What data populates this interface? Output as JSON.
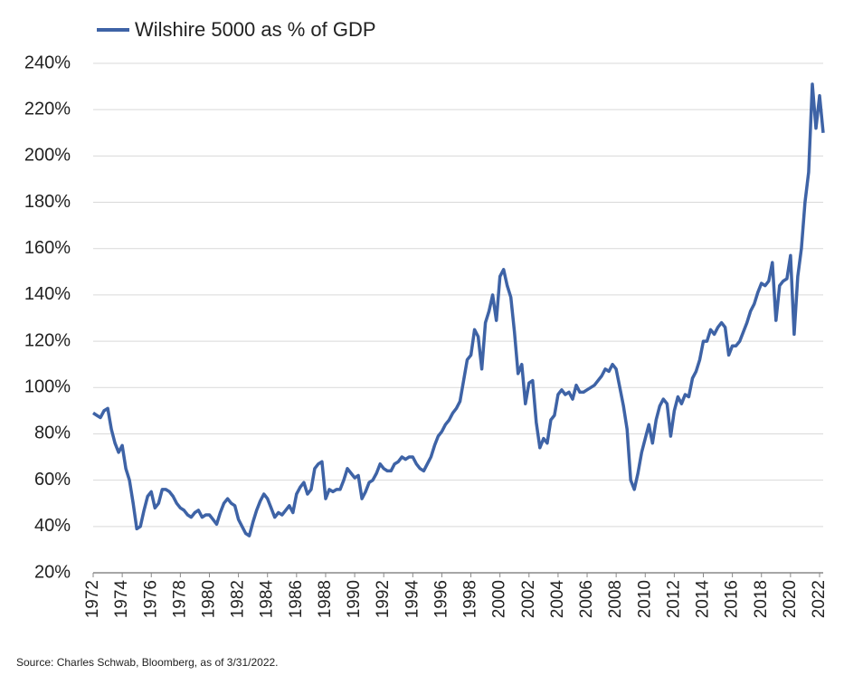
{
  "chart_data": {
    "type": "line",
    "legend": "top-left",
    "source": "Source: Charles Schwab, Bloomberg, as of 3/31/2022.",
    "x": [
      1972.0,
      1972.25,
      1972.5,
      1972.75,
      1973.0,
      1973.25,
      1973.5,
      1973.75,
      1974.0,
      1974.25,
      1974.5,
      1974.75,
      1975.0,
      1975.25,
      1975.5,
      1975.75,
      1976.0,
      1976.25,
      1976.5,
      1976.75,
      1977.0,
      1977.25,
      1977.5,
      1977.75,
      1978.0,
      1978.25,
      1978.5,
      1978.75,
      1979.0,
      1979.25,
      1979.5,
      1979.75,
      1980.0,
      1980.25,
      1980.5,
      1980.75,
      1981.0,
      1981.25,
      1981.5,
      1981.75,
      1982.0,
      1982.25,
      1982.5,
      1982.75,
      1983.0,
      1983.25,
      1983.5,
      1983.75,
      1984.0,
      1984.25,
      1984.5,
      1984.75,
      1985.0,
      1985.25,
      1985.5,
      1985.75,
      1986.0,
      1986.25,
      1986.5,
      1986.75,
      1987.0,
      1987.25,
      1987.5,
      1987.75,
      1988.0,
      1988.25,
      1988.5,
      1988.75,
      1989.0,
      1989.25,
      1989.5,
      1989.75,
      1990.0,
      1990.25,
      1990.5,
      1990.75,
      1991.0,
      1991.25,
      1991.5,
      1991.75,
      1992.0,
      1992.25,
      1992.5,
      1992.75,
      1993.0,
      1993.25,
      1993.5,
      1993.75,
      1994.0,
      1994.25,
      1994.5,
      1994.75,
      1995.0,
      1995.25,
      1995.5,
      1995.75,
      1996.0,
      1996.25,
      1996.5,
      1996.75,
      1997.0,
      1997.25,
      1997.5,
      1997.75,
      1998.0,
      1998.25,
      1998.5,
      1998.75,
      1999.0,
      1999.25,
      1999.5,
      1999.75,
      2000.0,
      2000.25,
      2000.5,
      2000.75,
      2001.0,
      2001.25,
      2001.5,
      2001.75,
      2002.0,
      2002.25,
      2002.5,
      2002.75,
      2003.0,
      2003.25,
      2003.5,
      2003.75,
      2004.0,
      2004.25,
      2004.5,
      2004.75,
      2005.0,
      2005.25,
      2005.5,
      2005.75,
      2006.0,
      2006.25,
      2006.5,
      2006.75,
      2007.0,
      2007.25,
      2007.5,
      2007.75,
      2008.0,
      2008.25,
      2008.5,
      2008.75,
      2009.0,
      2009.25,
      2009.5,
      2009.75,
      2010.0,
      2010.25,
      2010.5,
      2010.75,
      2011.0,
      2011.25,
      2011.5,
      2011.75,
      2012.0,
      2012.25,
      2012.5,
      2012.75,
      2013.0,
      2013.25,
      2013.5,
      2013.75,
      2014.0,
      2014.25,
      2014.5,
      2014.75,
      2015.0,
      2015.25,
      2015.5,
      2015.75,
      2016.0,
      2016.25,
      2016.5,
      2016.75,
      2017.0,
      2017.25,
      2017.5,
      2017.75,
      2018.0,
      2018.25,
      2018.5,
      2018.75,
      2019.0,
      2019.25,
      2019.5,
      2019.75,
      2020.0,
      2020.25,
      2020.5,
      2020.75,
      2021.0,
      2021.25,
      2021.5,
      2021.75,
      2022.0,
      2022.25
    ],
    "series": [
      {
        "name": "Wilshire 5000 as % of GDP",
        "color": "#3e63a6",
        "values": [
          89,
          88,
          87,
          90,
          91,
          82,
          76,
          72,
          75,
          65,
          60,
          50,
          39,
          40,
          47,
          53,
          55,
          48,
          50,
          56,
          56,
          55,
          53,
          50,
          48,
          47,
          45,
          44,
          46,
          47,
          44,
          45,
          45,
          43,
          41,
          46,
          50,
          52,
          50,
          49,
          43,
          40,
          37,
          36,
          42,
          47,
          51,
          54,
          52,
          48,
          44,
          46,
          45,
          47,
          49,
          46,
          54,
          57,
          59,
          54,
          56,
          65,
          67,
          68,
          52,
          56,
          55,
          56,
          56,
          60,
          65,
          63,
          61,
          62,
          52,
          55,
          59,
          60,
          63,
          67,
          65,
          64,
          64,
          67,
          68,
          70,
          69,
          70,
          70,
          67,
          65,
          64,
          67,
          70,
          75,
          79,
          81,
          84,
          86,
          89,
          91,
          94,
          103,
          112,
          114,
          125,
          122,
          108,
          128,
          133,
          140,
          129,
          148,
          151,
          144,
          139,
          124,
          106,
          110,
          93,
          102,
          103,
          85,
          74,
          78,
          76,
          86,
          88,
          97,
          99,
          97,
          98,
          95,
          101,
          98,
          98,
          99,
          100,
          101,
          103,
          105,
          108,
          107,
          110,
          108,
          100,
          92,
          82,
          60,
          56,
          63,
          72,
          78,
          84,
          76,
          86,
          92,
          95,
          93,
          79,
          90,
          96,
          93,
          97,
          96,
          104,
          107,
          112,
          120,
          120,
          125,
          123,
          126,
          128,
          126,
          114,
          118,
          118,
          120,
          124,
          128,
          133,
          136,
          141,
          145,
          144,
          146,
          154,
          129,
          144,
          146,
          147,
          157,
          123,
          148,
          160,
          180,
          193,
          231,
          212,
          226,
          210
        ]
      }
    ],
    "xlim": [
      1972,
      2022.25
    ],
    "xticks": [
      1972,
      1974,
      1976,
      1978,
      1980,
      1982,
      1984,
      1986,
      1988,
      1990,
      1992,
      1994,
      1996,
      1998,
      2000,
      2002,
      2004,
      2006,
      2008,
      2010,
      2012,
      2014,
      2016,
      2018,
      2020,
      2022
    ],
    "ylim": [
      20,
      240
    ],
    "yticks": [
      {
        "value": 20,
        "label": "20%"
      },
      {
        "value": 40,
        "label": "40%"
      },
      {
        "value": 60,
        "label": "60%"
      },
      {
        "value": 80,
        "label": "80%"
      },
      {
        "value": 100,
        "label": "100%"
      },
      {
        "value": 120,
        "label": "120%"
      },
      {
        "value": 140,
        "label": "140%"
      },
      {
        "value": 160,
        "label": "160%"
      },
      {
        "value": 180,
        "label": "180%"
      },
      {
        "value": 200,
        "label": "200%"
      },
      {
        "value": 220,
        "label": "220%"
      },
      {
        "value": 240,
        "label": "240%"
      }
    ],
    "grid": true
  }
}
